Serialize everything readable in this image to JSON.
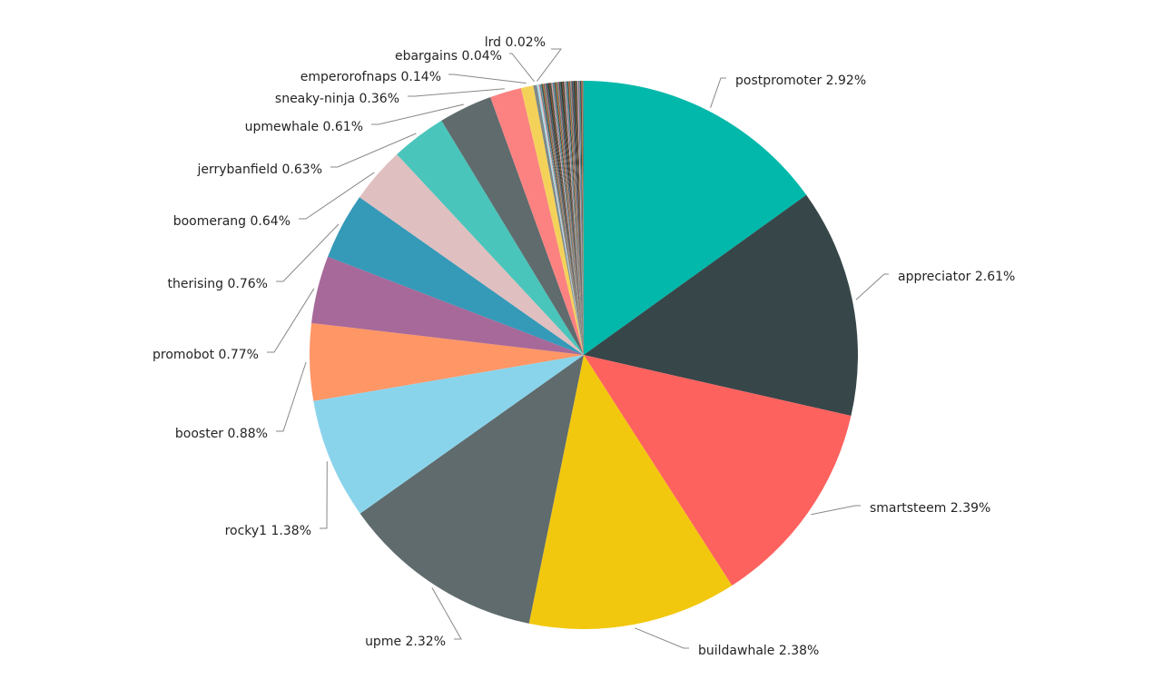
{
  "chart_data": {
    "type": "pie",
    "start": "top",
    "direction": "clockwise",
    "labelled_slices": [
      {
        "name": "postpromoter",
        "value": 2.92,
        "label": "postpromoter 2.92%",
        "color": "#01B8AA"
      },
      {
        "name": "appreciator",
        "value": 2.61,
        "label": "appreciator 2.61%",
        "color": "#374649"
      },
      {
        "name": "smartsteem",
        "value": 2.39,
        "label": "smartsteem 2.39%",
        "color": "#FD625E"
      },
      {
        "name": "buildawhale",
        "value": 2.38,
        "label": "buildawhale 2.38%",
        "color": "#F2C80F"
      },
      {
        "name": "upme",
        "value": 2.32,
        "label": "upme 2.32%",
        "color": "#5F6B6D"
      },
      {
        "name": "rocky1",
        "value": 1.38,
        "label": "rocky1 1.38%",
        "color": "#8AD4EB"
      },
      {
        "name": "booster",
        "value": 0.88,
        "label": "booster 0.88%",
        "color": "#FE9666"
      },
      {
        "name": "promobot",
        "value": 0.77,
        "label": "promobot 0.77%",
        "color": "#A66999"
      },
      {
        "name": "therising",
        "value": 0.76,
        "label": "therising 0.76%",
        "color": "#3599B8"
      },
      {
        "name": "boomerang",
        "value": 0.64,
        "label": "boomerang 0.64%",
        "color": "#DFBFBF"
      },
      {
        "name": "jerrybanfield",
        "value": 0.63,
        "label": "jerrybanfield 0.63%",
        "color": "#4AC5BB"
      },
      {
        "name": "upmewhale",
        "value": 0.61,
        "label": "upmewhale 0.61%",
        "color": "#5F6B6D"
      },
      {
        "name": "sneaky-ninja",
        "value": 0.36,
        "label": "sneaky-ninja 0.36%",
        "color": "#FB8281"
      },
      {
        "name": "emperorofnaps",
        "value": 0.14,
        "label": "emperorofnaps 0.14%",
        "color": "#F4D25A"
      },
      {
        "name": "ebargains",
        "value": 0.04,
        "label": "ebargains 0.04%",
        "color": "#7F898A"
      },
      {
        "name": "lrd",
        "value": 0.02,
        "label": "lrd 0.02%",
        "color": "#A4DDEE"
      }
    ],
    "other_slices_color_cycle": [
      "#FDAB89",
      "#B687AC",
      "#28738A",
      "#A78F8F",
      "#168980",
      "#293537",
      "#BB4A4A",
      "#B59525",
      "#475052",
      "#6A9FB0",
      "#BD7150",
      "#7B4F71",
      "#1B4D5C",
      "#706060",
      "#0F5C55",
      "#1C2325",
      "#7D3231",
      "#796419",
      "#303637",
      "#476A75"
    ],
    "other_slices_count": 70,
    "other_slices_angle_deg": 9.5,
    "legend": "none",
    "title": ""
  }
}
